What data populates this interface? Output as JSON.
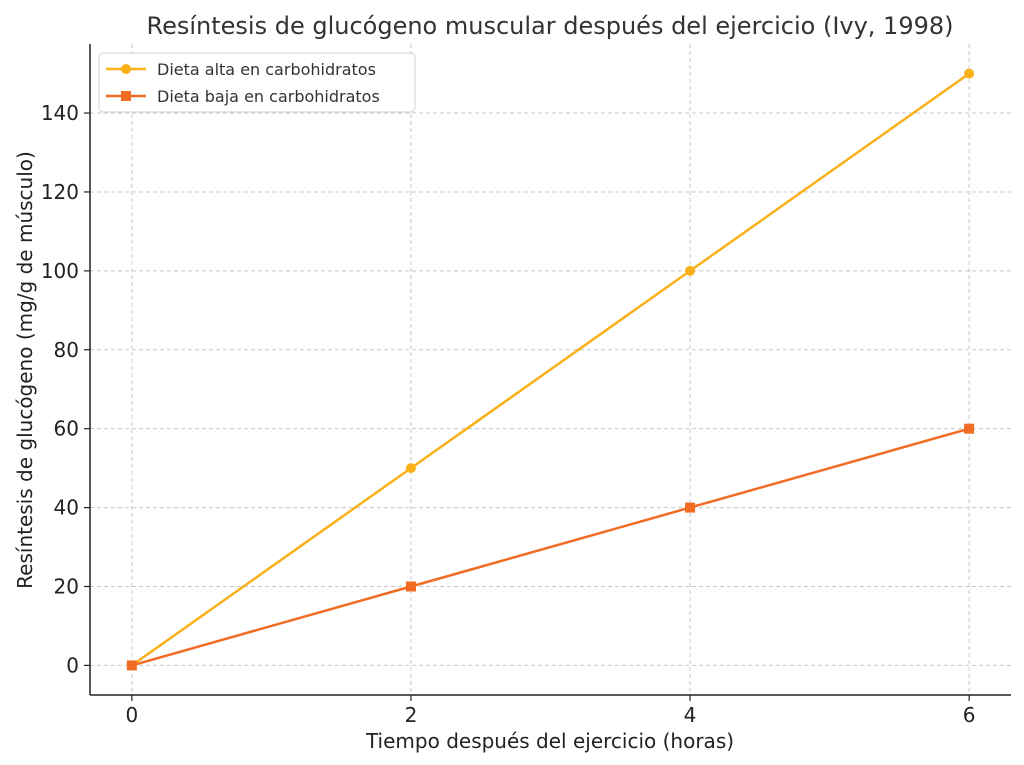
{
  "chart_data": {
    "type": "line",
    "title": "Resíntesis de glucógeno muscular después del ejercicio (Ivy, 1998)",
    "xlabel": "Tiempo después del ejercicio (horas)",
    "ylabel": "Resíntesis de glucógeno (mg/g de músculo)",
    "x": [
      0,
      2,
      4,
      6
    ],
    "x_ticks": [
      0,
      2,
      4,
      6
    ],
    "y_ticks": [
      0,
      20,
      40,
      60,
      80,
      100,
      120,
      140
    ],
    "xlim": [
      -0.3,
      6.3
    ],
    "ylim": [
      -7.5,
      157.5
    ],
    "grid": true,
    "legend_position": "top-left",
    "series": [
      {
        "name": "Dieta alta en carbohidratos",
        "values": [
          0,
          50,
          100,
          150
        ],
        "color": "#f9b019",
        "marker": "circle"
      },
      {
        "name": "Dieta baja en carbohidratos",
        "values": [
          0,
          20,
          40,
          60
        ],
        "color": "#f16b23",
        "marker": "square"
      }
    ]
  }
}
